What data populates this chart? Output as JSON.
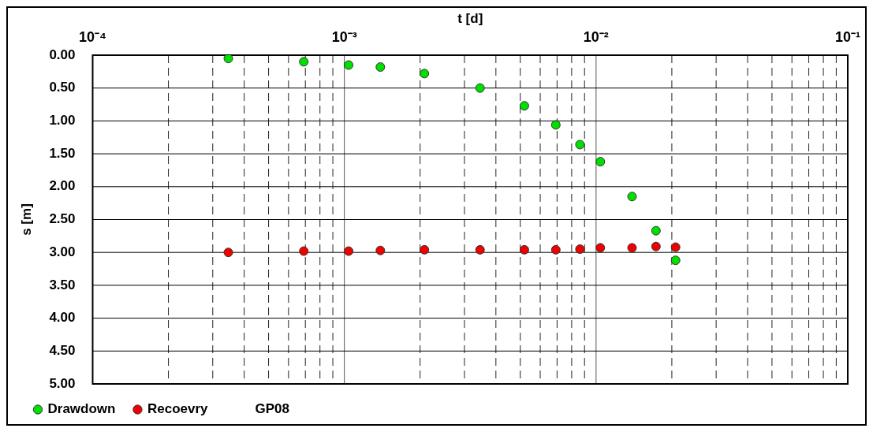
{
  "chart_data": {
    "type": "scatter",
    "xlabel": "t [d]",
    "ylabel": "s [m]",
    "log": "x",
    "grid": true,
    "legend": "bottom left",
    "marker": "circle",
    "annotations": [
      "GP08"
    ],
    "x": [
      0.000346,
      0.00069,
      0.00104,
      0.00139,
      0.00208,
      0.00346,
      0.00519,
      0.00692,
      0.00863,
      0.0104,
      0.0139,
      0.0173,
      0.0207
    ],
    "xlim": [
      0.0001,
      0.1
    ],
    "xticks": [
      {
        "value": 0.0001,
        "label": "10⁻⁴"
      },
      {
        "value": 0.0002,
        "label": null
      },
      {
        "value": 0.0003,
        "label": null
      },
      {
        "value": 0.0004,
        "label": null
      },
      {
        "value": 0.0005,
        "label": null
      },
      {
        "value": 0.0006,
        "label": null
      },
      {
        "value": 0.0007,
        "label": null
      },
      {
        "value": 0.0008,
        "label": null
      },
      {
        "value": 0.0009,
        "label": null
      },
      {
        "value": 0.001,
        "label": "10⁻³"
      },
      {
        "value": 0.002,
        "label": null
      },
      {
        "value": 0.003,
        "label": null
      },
      {
        "value": 0.004,
        "label": null
      },
      {
        "value": 0.005,
        "label": null
      },
      {
        "value": 0.006,
        "label": null
      },
      {
        "value": 0.007,
        "label": null
      },
      {
        "value": 0.008,
        "label": null
      },
      {
        "value": 0.009,
        "label": null
      },
      {
        "value": 0.01,
        "label": "10⁻²"
      },
      {
        "value": 0.02,
        "label": null
      },
      {
        "value": 0.03,
        "label": null
      },
      {
        "value": 0.04,
        "label": null
      },
      {
        "value": 0.05,
        "label": null
      },
      {
        "value": 0.06,
        "label": null
      },
      {
        "value": 0.07,
        "label": null
      },
      {
        "value": 0.08,
        "label": null
      },
      {
        "value": 0.09,
        "label": null
      },
      {
        "value": 0.1,
        "label": "10⁻¹"
      }
    ],
    "ylim": [
      5,
      0
    ],
    "yticks": [
      {
        "value": 0,
        "label": "0.00"
      },
      {
        "value": 0.5,
        "label": "0.50"
      },
      {
        "value": 1,
        "label": "1.00"
      },
      {
        "value": 1.5,
        "label": "1.50"
      },
      {
        "value": 2,
        "label": "2.00"
      },
      {
        "value": 2.5,
        "label": "2.50"
      },
      {
        "value": 3,
        "label": "3.00"
      },
      {
        "value": 3.5,
        "label": "3.50"
      },
      {
        "value": 4,
        "label": "4.00"
      },
      {
        "value": 4.5,
        "label": "4.50"
      },
      {
        "value": 5,
        "label": "5.00"
      }
    ],
    "series": [
      {
        "name": "Drawdown",
        "color": "#00e000",
        "values": [
          0.05,
          0.1,
          0.15,
          0.18,
          0.28,
          0.5,
          0.77,
          1.06,
          1.36,
          1.62,
          2.15,
          2.67,
          3.12
        ]
      },
      {
        "name": "Recoevry",
        "color": "#f00000",
        "values": [
          3.0,
          2.98,
          2.98,
          2.97,
          2.96,
          2.96,
          2.96,
          2.96,
          2.95,
          2.93,
          2.93,
          2.91,
          2.92
        ]
      }
    ]
  }
}
